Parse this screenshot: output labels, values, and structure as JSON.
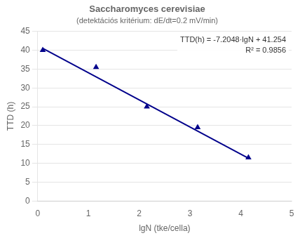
{
  "chart_data": {
    "type": "scatter",
    "title": "Saccharomyces cerevisiae",
    "subtitle": "(detektációs kritérium: dE/dt=0.2 mV/min)",
    "annotations": [
      "TTD(h) = -7.2048·lgN + 41.254",
      "R² = 0.9856"
    ],
    "xlabel": "lgN (tke/cella)",
    "ylabel": "TTD (h)",
    "xlim": [
      0,
      5
    ],
    "ylim": [
      0,
      45
    ],
    "xticks": [
      0,
      1,
      2,
      3,
      4,
      5
    ],
    "yticks": [
      0,
      5,
      10,
      15,
      20,
      25,
      30,
      35,
      40,
      45
    ],
    "grid": "y",
    "series": [
      {
        "type": "line",
        "color": "#00008B",
        "x": [
          0.1,
          4.15
        ],
        "values": [
          40.53352,
          11.35408
        ]
      },
      {
        "type": "scatter",
        "marker": "triangle",
        "color": "#00008B",
        "x": [
          0.1,
          1.15,
          2.15,
          3.15,
          4.15
        ],
        "values": [
          40.0,
          35.5,
          25.0,
          19.5,
          11.5
        ]
      }
    ]
  }
}
